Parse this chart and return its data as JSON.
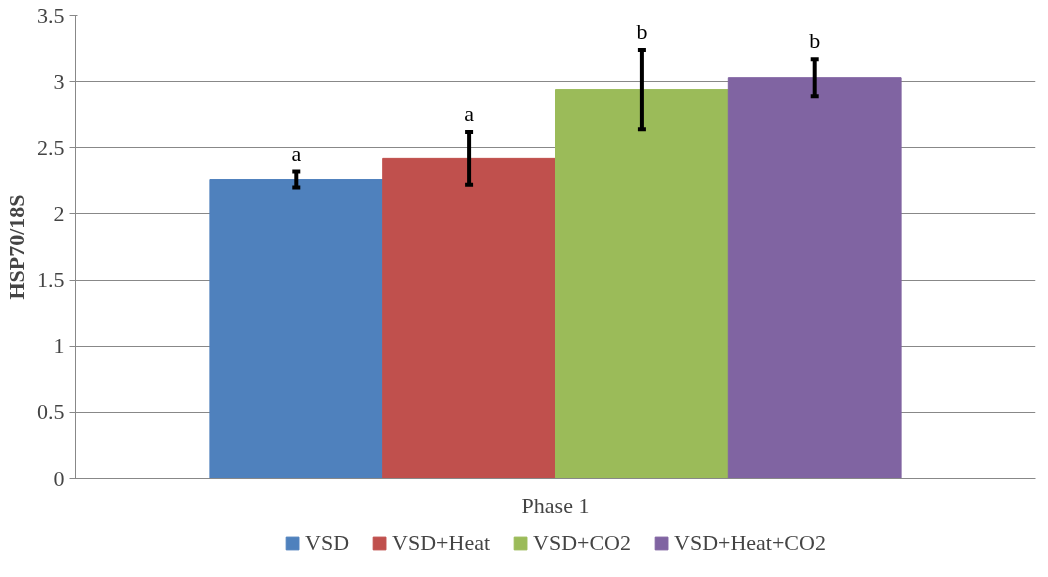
{
  "chart_data": {
    "type": "bar",
    "ylabel": "HSP70/18S",
    "categories": [
      "Phase 1"
    ],
    "series": [
      {
        "name": "VSD",
        "color": "#4f81bd",
        "values": [
          2.26
        ],
        "errors": [
          0.06
        ],
        "value_labels": [
          "a"
        ]
      },
      {
        "name": "VSD+Heat",
        "color": "#c0504d",
        "values": [
          2.42
        ],
        "errors": [
          0.2
        ],
        "value_labels": [
          "a"
        ]
      },
      {
        "name": "VSD+CO2",
        "color": "#9bbb59",
        "values": [
          2.94
        ],
        "errors": [
          0.3
        ],
        "value_labels": [
          "b"
        ]
      },
      {
        "name": "VSD+Heat+CO2",
        "color": "#8064a2",
        "values": [
          3.03
        ],
        "errors": [
          0.14
        ],
        "value_labels": [
          "b"
        ]
      }
    ],
    "ylim": [
      0,
      3.5
    ],
    "yticks": [
      0,
      0.5,
      1,
      1.5,
      2,
      2.5,
      3,
      3.5
    ],
    "grid": "y",
    "legend": "bottom"
  }
}
